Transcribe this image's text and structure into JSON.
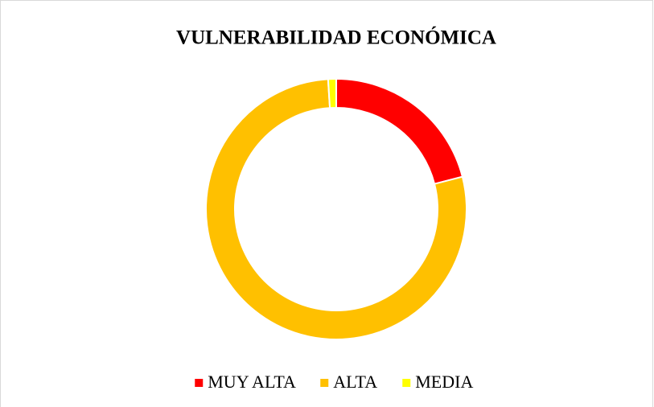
{
  "chart_data": {
    "type": "donut",
    "title": "VULNERABILIDAD ECONÓMICA",
    "categories": [
      "MUY ALTA",
      "ALTA",
      "MEDIA"
    ],
    "values": [
      21,
      78,
      1
    ],
    "colors": [
      "#ff0000",
      "#ffc000",
      "#ffff00"
    ],
    "legend": "bottom"
  }
}
